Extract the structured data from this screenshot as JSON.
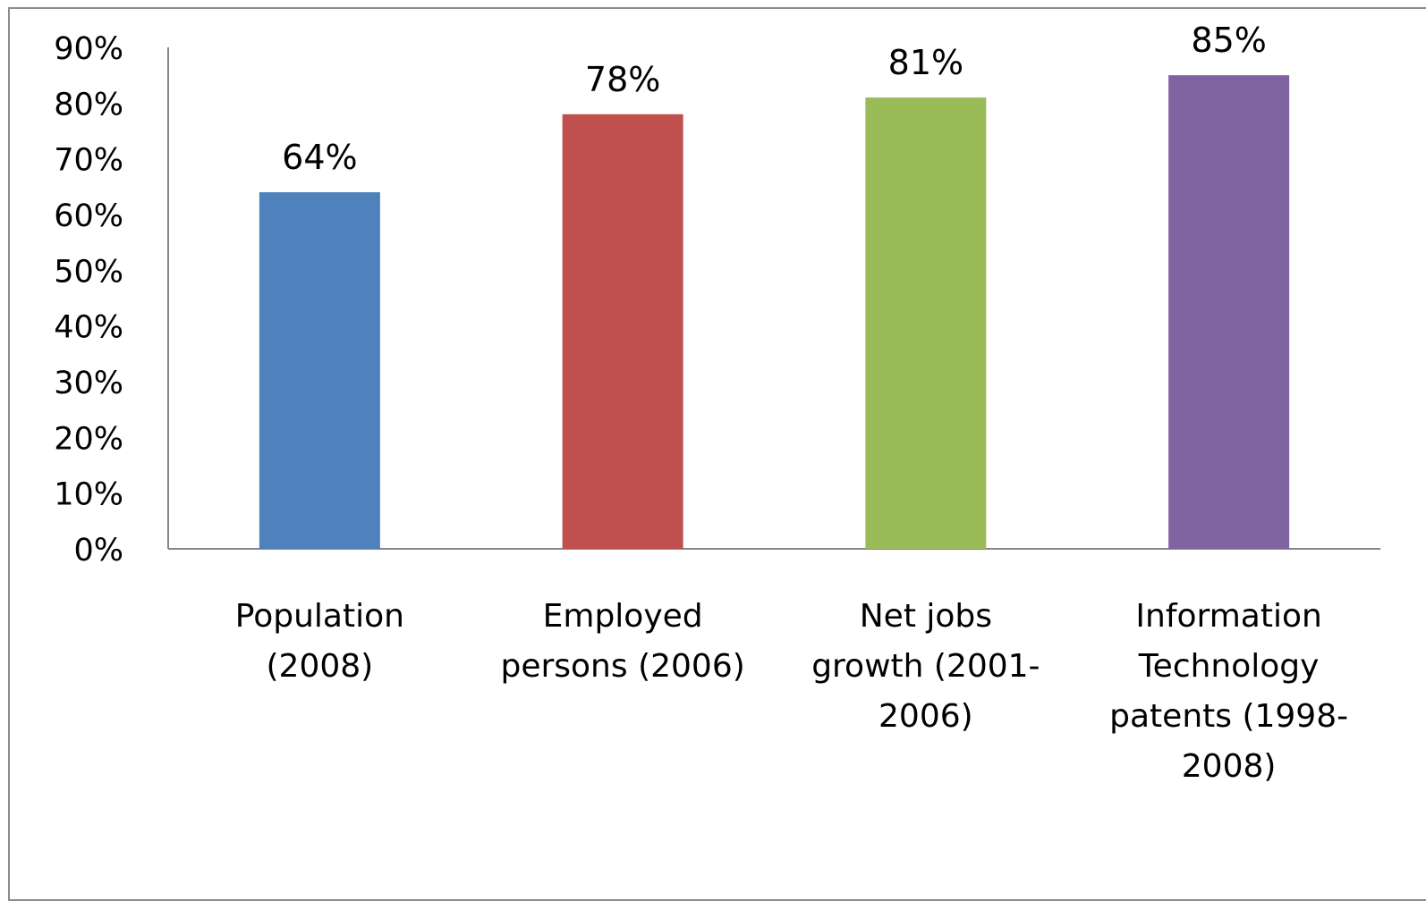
{
  "chart_data": {
    "type": "bar",
    "categories": [
      "Population (2008)",
      "Employed persons (2006)",
      "Net jobs growth (2001-2006)",
      "Information Technology patents (1998-2008)"
    ],
    "values": [
      64,
      78,
      81,
      85
    ],
    "data_labels": [
      "64%",
      "78%",
      "81%",
      "85%"
    ],
    "colors": [
      "#4f81bd",
      "#c0504d",
      "#9bbb59",
      "#8064a2"
    ],
    "ylim": [
      0,
      90
    ],
    "y_ticks": [
      0,
      10,
      20,
      30,
      40,
      50,
      60,
      70,
      80,
      90
    ],
    "y_tick_labels": [
      "0%",
      "10%",
      "20%",
      "30%",
      "40%",
      "50%",
      "60%",
      "70%",
      "80%",
      "90%"
    ],
    "title": "",
    "xlabel": "",
    "ylabel": "",
    "grid": false,
    "legend": "none",
    "category_label_lines": [
      [
        "Population",
        "(2008)"
      ],
      [
        "Employed",
        "persons (2006)"
      ],
      [
        "Net jobs",
        "growth (2001-",
        "2006)"
      ],
      [
        "Information",
        "Technology",
        "patents (1998-",
        "2008)"
      ]
    ]
  }
}
